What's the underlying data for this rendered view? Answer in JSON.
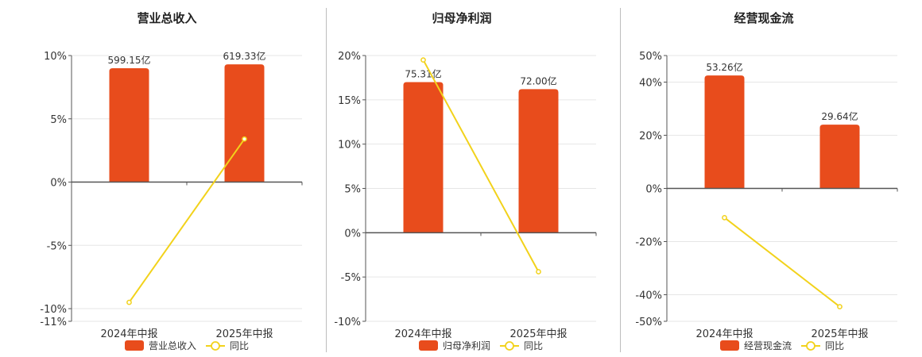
{
  "colors": {
    "bar": "#e84c1c",
    "line": "#f2d21b",
    "grid": "#e6e6e6",
    "axis": "#555555"
  },
  "series_names": {
    "line": "同比"
  },
  "chart_data": [
    {
      "type": "bar",
      "title": "营业总收入",
      "categories": [
        "2024年中报",
        "2025年中报"
      ],
      "bar_name": "营业总收入",
      "bar_labels": [
        "599.15亿",
        "619.33亿"
      ],
      "bar_values": [
        599.15,
        619.33
      ],
      "yoy": [
        -9.5,
        3.4
      ],
      "bar_display_pct": [
        9.0,
        9.3
      ],
      "ylim": [
        -11,
        10
      ],
      "yticks": [
        10,
        5,
        0,
        -5,
        -10,
        -11
      ],
      "ytick_labels": [
        "10%",
        "5%",
        "0%",
        "-5%",
        "-10%",
        "-11%"
      ],
      "legend_position": "bottom"
    },
    {
      "type": "bar",
      "title": "归母净利润",
      "categories": [
        "2024年中报",
        "2025年中报"
      ],
      "bar_name": "归母净利润",
      "bar_labels": [
        "75.31亿",
        "72.00亿"
      ],
      "bar_values": [
        75.31,
        72.0
      ],
      "yoy": [
        19.5,
        -4.4
      ],
      "bar_display_pct": [
        17.0,
        16.2
      ],
      "ylim": [
        -10,
        20
      ],
      "yticks": [
        20,
        15,
        10,
        5,
        0,
        -5,
        -10
      ],
      "ytick_labels": [
        "20%",
        "15%",
        "10%",
        "5%",
        "0%",
        "-5%",
        "-10%"
      ],
      "legend_position": "bottom"
    },
    {
      "type": "bar",
      "title": "经营现金流",
      "categories": [
        "2024年中报",
        "2025年中报"
      ],
      "bar_name": "经营现金流",
      "bar_labels": [
        "53.26亿",
        "29.64亿"
      ],
      "bar_values": [
        53.26,
        29.64
      ],
      "yoy": [
        -11.0,
        -44.5
      ],
      "bar_display_pct": [
        42.5,
        24.0
      ],
      "ylim": [
        -50,
        50
      ],
      "yticks": [
        50,
        40,
        20,
        0,
        -20,
        -40,
        -50
      ],
      "ytick_labels": [
        "50%",
        "40%",
        "20%",
        "0%",
        "-20%",
        "-40%",
        "-50%"
      ],
      "legend_position": "bottom"
    }
  ]
}
